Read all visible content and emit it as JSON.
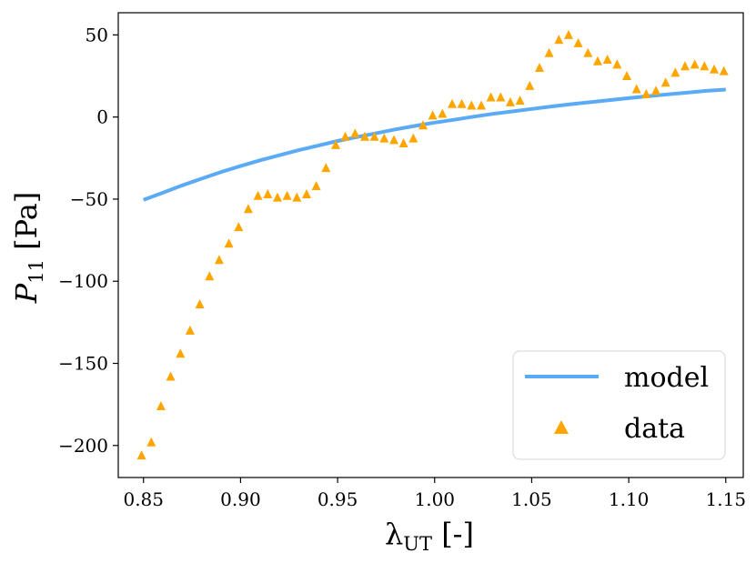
{
  "chart_data": {
    "type": "line+scatter",
    "title": "",
    "xlabel": {
      "main": "λ",
      "sub": "UT",
      "unit": " [-]"
    },
    "ylabel": {
      "main": "P",
      "sub": "11",
      "unit": " [Pa]"
    },
    "xlim": [
      0.837,
      1.159
    ],
    "ylim": [
      -219.5,
      63.5
    ],
    "xticks": [
      0.85,
      0.9,
      0.95,
      1.0,
      1.05,
      1.1,
      1.15
    ],
    "xtick_labels": [
      "0.85",
      "0.90",
      "0.95",
      "1.00",
      "1.05",
      "1.10",
      "1.15"
    ],
    "yticks": [
      50,
      0,
      -50,
      -100,
      -150,
      -200
    ],
    "ytick_labels": [
      "50",
      "0",
      "−50",
      "−100",
      "−150",
      "−200"
    ],
    "grid": false,
    "legend_location": "lower-right",
    "series": [
      {
        "name": "model",
        "kind": "line",
        "color": "#5aaaf5",
        "formula": "y = A*(x - 1/x^2), A ≈ 19.0",
        "x": [
          0.85,
          0.86,
          0.87,
          0.88,
          0.89,
          0.9,
          0.91,
          0.92,
          0.93,
          0.94,
          0.95,
          0.96,
          0.97,
          0.98,
          0.99,
          1.0,
          1.01,
          1.02,
          1.03,
          1.04,
          1.05,
          1.06,
          1.07,
          1.08,
          1.09,
          1.1,
          1.11,
          1.12,
          1.13,
          1.14,
          1.15
        ],
        "y": [
          -50.4,
          -46.1,
          -41.6,
          -37.5,
          -33.5,
          -29.9,
          -26.4,
          -23.3,
          -20.2,
          -17.4,
          -14.6,
          -12.2,
          -9.8,
          -7.5,
          -5.4,
          -3.4,
          -1.7,
          0.2,
          1.9,
          3.4,
          4.9,
          6.4,
          7.8,
          9.0,
          10.3,
          11.5,
          12.7,
          13.8,
          14.8,
          15.9,
          16.7
        ]
      },
      {
        "name": "data",
        "kind": "scatter",
        "marker": "triangle",
        "color": "#ffa500",
        "x": [
          0.849,
          0.854,
          0.859,
          0.864,
          0.869,
          0.874,
          0.879,
          0.884,
          0.889,
          0.894,
          0.899,
          0.904,
          0.909,
          0.914,
          0.919,
          0.924,
          0.929,
          0.934,
          0.939,
          0.944,
          0.949,
          0.954,
          0.959,
          0.964,
          0.969,
          0.974,
          0.979,
          0.984,
          0.989,
          0.994,
          0.999,
          1.004,
          1.009,
          1.014,
          1.019,
          1.024,
          1.029,
          1.034,
          1.039,
          1.044,
          1.049,
          1.054,
          1.059,
          1.064,
          1.069,
          1.074,
          1.079,
          1.084,
          1.089,
          1.094,
          1.099,
          1.104,
          1.109,
          1.114,
          1.119,
          1.124,
          1.129,
          1.134,
          1.139,
          1.144,
          1.149
        ],
        "y": [
          -206,
          -198,
          -176,
          -158,
          -144,
          -130,
          -114,
          -97,
          -87,
          -77,
          -67,
          -56,
          -48,
          -47,
          -49,
          -48,
          -49,
          -47,
          -42,
          -31,
          -17,
          -12,
          -10,
          -12,
          -12,
          -13,
          -14,
          -16,
          -13,
          -5,
          1,
          2,
          8,
          8,
          7,
          7,
          12,
          12,
          9,
          10,
          19,
          30,
          39,
          47,
          50,
          45,
          39,
          34,
          35,
          32,
          25,
          17,
          14,
          16,
          21,
          27,
          31,
          32,
          31,
          29,
          28
        ]
      }
    ]
  }
}
